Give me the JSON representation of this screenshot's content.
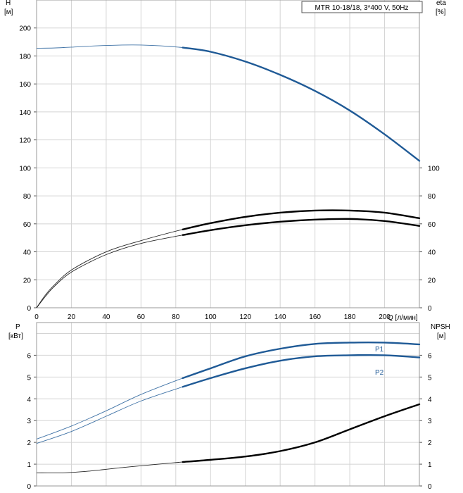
{
  "chart_data": [
    {
      "type": "line",
      "legend_box": "MTR 10-18/18, 3*400 V, 50Hz",
      "x_axis": {
        "label": "Q [л/мин]",
        "range": [
          0,
          220
        ],
        "ticks": [
          0,
          20,
          40,
          60,
          80,
          100,
          120,
          140,
          160,
          180,
          200
        ],
        "tick_labels": [
          "0",
          "20",
          "40",
          "60",
          "80",
          "100",
          "120",
          "140",
          "160",
          "180",
          "200"
        ]
      },
      "y_left": {
        "label_top": "H",
        "label_unit": "[м]",
        "range": [
          0,
          220
        ],
        "ticks": [
          0,
          20,
          40,
          60,
          80,
          100,
          120,
          140,
          160,
          180,
          200
        ]
      },
      "y_right": {
        "label_top": "eta",
        "label_unit": "[%]",
        "ticks": [
          0,
          20,
          40,
          60,
          80,
          100
        ]
      },
      "grid": true,
      "series": [
        {
          "color": "#1f5a96",
          "axis": "left",
          "highlight_from": 84,
          "x": [
            0,
            10,
            20,
            40,
            60,
            84,
            100,
            120,
            140,
            160,
            180,
            200,
            220
          ],
          "y": [
            185.5,
            185.7,
            186.3,
            187.5,
            187.8,
            186,
            183,
            176,
            166.5,
            155,
            141,
            124,
            105
          ]
        },
        {
          "color": "#000000",
          "axis": "right",
          "highlight_from": 84,
          "x": [
            0,
            5,
            10,
            20,
            40,
            60,
            84,
            100,
            120,
            140,
            160,
            180,
            200,
            220
          ],
          "y": [
            0,
            9,
            16,
            27,
            40,
            48,
            56,
            60.5,
            65,
            68,
            69.5,
            69.5,
            68,
            64
          ]
        },
        {
          "color": "#000000",
          "axis": "right",
          "highlight_from": 84,
          "x": [
            0,
            5,
            10,
            20,
            40,
            60,
            84,
            100,
            120,
            140,
            160,
            180,
            200,
            220
          ],
          "y": [
            0,
            8,
            15,
            25.5,
            38,
            46,
            52,
            55.5,
            59,
            61.5,
            63,
            63.5,
            62,
            58.5
          ]
        }
      ]
    },
    {
      "type": "line",
      "x_axis": {
        "range": [
          0,
          220
        ]
      },
      "y_left": {
        "label_top": "P",
        "label_unit": "[кВт]",
        "range": [
          0,
          7.5
        ],
        "ticks": [
          0,
          1,
          2,
          3,
          4,
          5,
          6
        ]
      },
      "y_right": {
        "label_top": "NPSH",
        "label_unit": "[м]",
        "ticks": [
          0,
          1,
          2,
          3,
          4,
          5,
          6
        ]
      },
      "grid": true,
      "series": [
        {
          "name": "P1",
          "color": "#1f5a96",
          "axis": "left",
          "highlight_from": 84,
          "x": [
            0,
            20,
            40,
            60,
            84,
            100,
            120,
            140,
            160,
            180,
            200,
            220
          ],
          "y": [
            2.15,
            2.75,
            3.45,
            4.2,
            4.95,
            5.4,
            5.95,
            6.3,
            6.52,
            6.58,
            6.58,
            6.5
          ]
        },
        {
          "name": "P2",
          "color": "#1f5a96",
          "axis": "left",
          "highlight_from": 84,
          "x": [
            0,
            20,
            40,
            60,
            84,
            100,
            120,
            140,
            160,
            180,
            200,
            220
          ],
          "y": [
            1.95,
            2.5,
            3.2,
            3.9,
            4.55,
            4.95,
            5.4,
            5.75,
            5.95,
            6.0,
            6.0,
            5.9
          ]
        },
        {
          "color": "#000000",
          "axis": "right",
          "highlight_from": 84,
          "x": [
            0,
            15,
            30,
            50,
            70,
            84,
            100,
            120,
            140,
            160,
            180,
            200,
            220
          ],
          "y": [
            0.6,
            0.6,
            0.68,
            0.85,
            1.0,
            1.1,
            1.2,
            1.35,
            1.6,
            2.0,
            2.6,
            3.2,
            3.75
          ]
        }
      ]
    }
  ]
}
